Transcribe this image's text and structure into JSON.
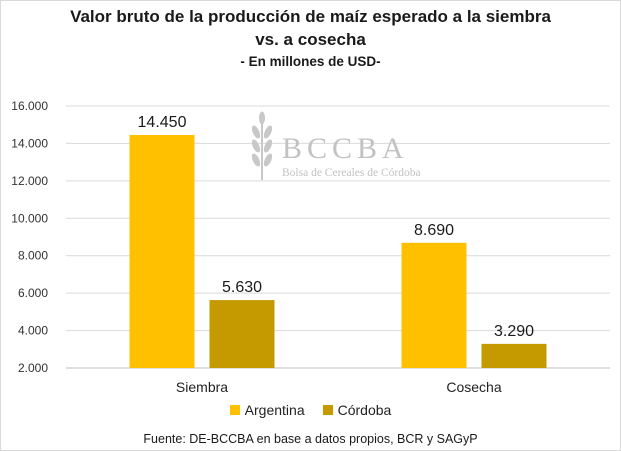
{
  "title_line1": "Valor bruto de la producción de maíz esperado a la siembra",
  "title_line2": "vs. a cosecha",
  "subtitle": "- En millones de USD-",
  "watermark": {
    "name": "BCCBA",
    "sub": "Bolsa de Cereales de Córdoba"
  },
  "source": "Fuente: DE-BCCBA en base a datos propios, BCR y SAGyP",
  "colors": {
    "argentina": "#ffc000",
    "cordoba": "#c59a00",
    "grid": "#d9d9d9",
    "axis": "#bfbfbf"
  },
  "chart_data": {
    "type": "bar",
    "categories": [
      "Siembra",
      "Cosecha"
    ],
    "series": [
      {
        "name": "Argentina",
        "values": [
          14450,
          8690
        ],
        "labels": [
          "14.450",
          "8.690"
        ]
      },
      {
        "name": "Córdoba",
        "values": [
          5630,
          3290
        ],
        "labels": [
          "5.630",
          "3.290"
        ]
      }
    ],
    "ylim": [
      2000,
      16000
    ],
    "yticks": [
      2000,
      4000,
      6000,
      8000,
      10000,
      12000,
      14000,
      16000
    ],
    "ytick_labels": [
      "2.000",
      "4.000",
      "6.000",
      "8.000",
      "10.000",
      "12.000",
      "14.000",
      "16.000"
    ],
    "grid": true,
    "legend_position": "bottom",
    "title": "Valor bruto de la producción de maíz esperado a la siembra vs. a cosecha",
    "subtitle": "- En millones de USD-",
    "xlabel": "",
    "ylabel": ""
  }
}
